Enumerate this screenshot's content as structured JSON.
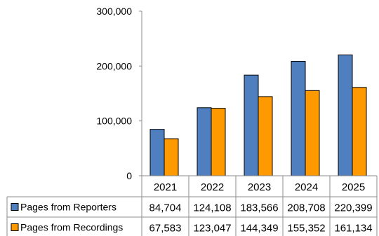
{
  "chart_data": {
    "type": "bar",
    "title": "",
    "xlabel": "",
    "ylabel": "",
    "ylim": [
      0,
      300000
    ],
    "yticks": [
      0,
      100000,
      200000,
      300000
    ],
    "ytick_labels": [
      "0",
      "100,000",
      "200,000",
      "300,000"
    ],
    "grid": false,
    "legend": "data-table",
    "categories": [
      "2021",
      "2022",
      "2023",
      "2024",
      "2025"
    ],
    "series": [
      {
        "name": "Pages from Reporters",
        "color": "#4F7FBF",
        "values": [
          84704,
          124108,
          183566,
          208708,
          220399
        ],
        "labels": [
          "84,704",
          "124,108",
          "183,566",
          "208,708",
          "220,399"
        ]
      },
      {
        "name": "Pages from Recordings",
        "color": "#FF9900",
        "values": [
          67583,
          123047,
          144349,
          155352,
          161134
        ],
        "labels": [
          "67,583",
          "123,047",
          "144,349",
          "155,352",
          "161,134"
        ]
      }
    ]
  }
}
